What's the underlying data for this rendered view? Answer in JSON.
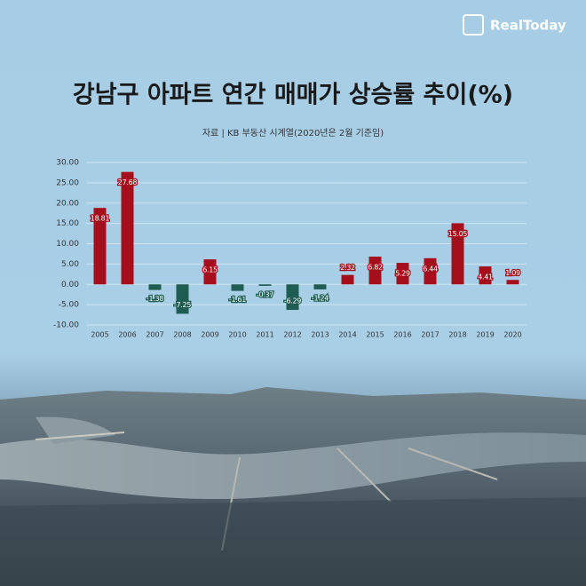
{
  "brand": "RealToday",
  "chart_data": {
    "type": "bar",
    "title": "강남구 아파트 연간 매매가 상승률 추이(%)",
    "subtitle": "자료 | KB 부동산 시계열(2020년은 2월 기준임)",
    "categories": [
      "2005",
      "2006",
      "2007",
      "2008",
      "2009",
      "2010",
      "2011",
      "2012",
      "2013",
      "2014",
      "2015",
      "2016",
      "2017",
      "2018",
      "2019",
      "2020"
    ],
    "values": [
      18.81,
      27.68,
      -1.38,
      -7.25,
      6.15,
      -1.61,
      -0.37,
      -6.29,
      -1.24,
      2.32,
      6.82,
      5.29,
      6.44,
      15.05,
      4.41,
      1.09
    ],
    "positive_color": "#a50f1c",
    "negative_color": "#1f5d52",
    "ylim": [
      -10,
      30
    ],
    "yticks": [
      {
        "value": 30,
        "label": "30.00"
      },
      {
        "value": 25,
        "label": "25.00"
      },
      {
        "value": 20,
        "label": "20.00"
      },
      {
        "value": 15,
        "label": "15.00"
      },
      {
        "value": 10,
        "label": "10.00"
      },
      {
        "value": 5,
        "label": "5.00"
      },
      {
        "value": 0,
        "label": "0.00"
      },
      {
        "value": -5,
        "label": "-5.00"
      },
      {
        "value": -10,
        "label": "-10.00"
      }
    ],
    "grid": true
  }
}
